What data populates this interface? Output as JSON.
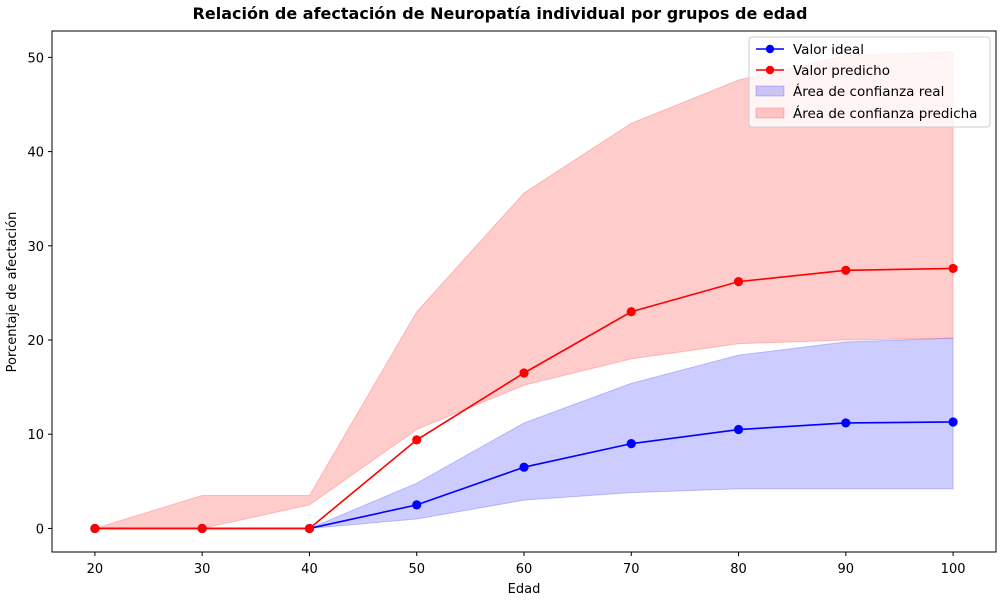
{
  "chart_data": {
    "type": "line",
    "title": "Relación de afectación de Neuropatía individual por grupos de edad",
    "xlabel": "Edad",
    "ylabel": "Porcentaje de afectación",
    "x": [
      20,
      30,
      40,
      50,
      60,
      70,
      80,
      90,
      100
    ],
    "xlim": [
      16,
      104
    ],
    "ylim": [
      -2.5,
      52.8
    ],
    "xticks": [
      20,
      30,
      40,
      50,
      60,
      70,
      80,
      90,
      100
    ],
    "yticks": [
      0,
      10,
      20,
      30,
      40,
      50
    ],
    "grid": false,
    "legend_position": "top-right",
    "series": [
      {
        "name": "Valor ideal",
        "color": "#0000ff",
        "values": [
          0,
          0,
          0,
          2.5,
          6.5,
          9.0,
          10.5,
          11.2,
          11.3
        ]
      },
      {
        "name": "Valor predicho",
        "color": "#ff0000",
        "values": [
          0,
          0,
          0,
          9.4,
          16.5,
          23.0,
          26.2,
          27.4,
          27.6
        ]
      }
    ],
    "bands": [
      {
        "name": "Área de confianza real",
        "color": "#0000ff",
        "lower": [
          0,
          0,
          0,
          1.0,
          3.0,
          3.8,
          4.2,
          4.2,
          4.2
        ],
        "upper": [
          0,
          0,
          0,
          4.8,
          11.2,
          15.4,
          18.4,
          19.8,
          20.2
        ]
      },
      {
        "name": "Área de confianza predicha",
        "color": "#ff0000",
        "lower": [
          0,
          0,
          2.5,
          10.5,
          15.2,
          18.0,
          19.6,
          20.0,
          20.2
        ],
        "upper": [
          0,
          3.5,
          3.5,
          23.0,
          35.6,
          43.0,
          47.6,
          50.2,
          50.6
        ]
      }
    ]
  }
}
